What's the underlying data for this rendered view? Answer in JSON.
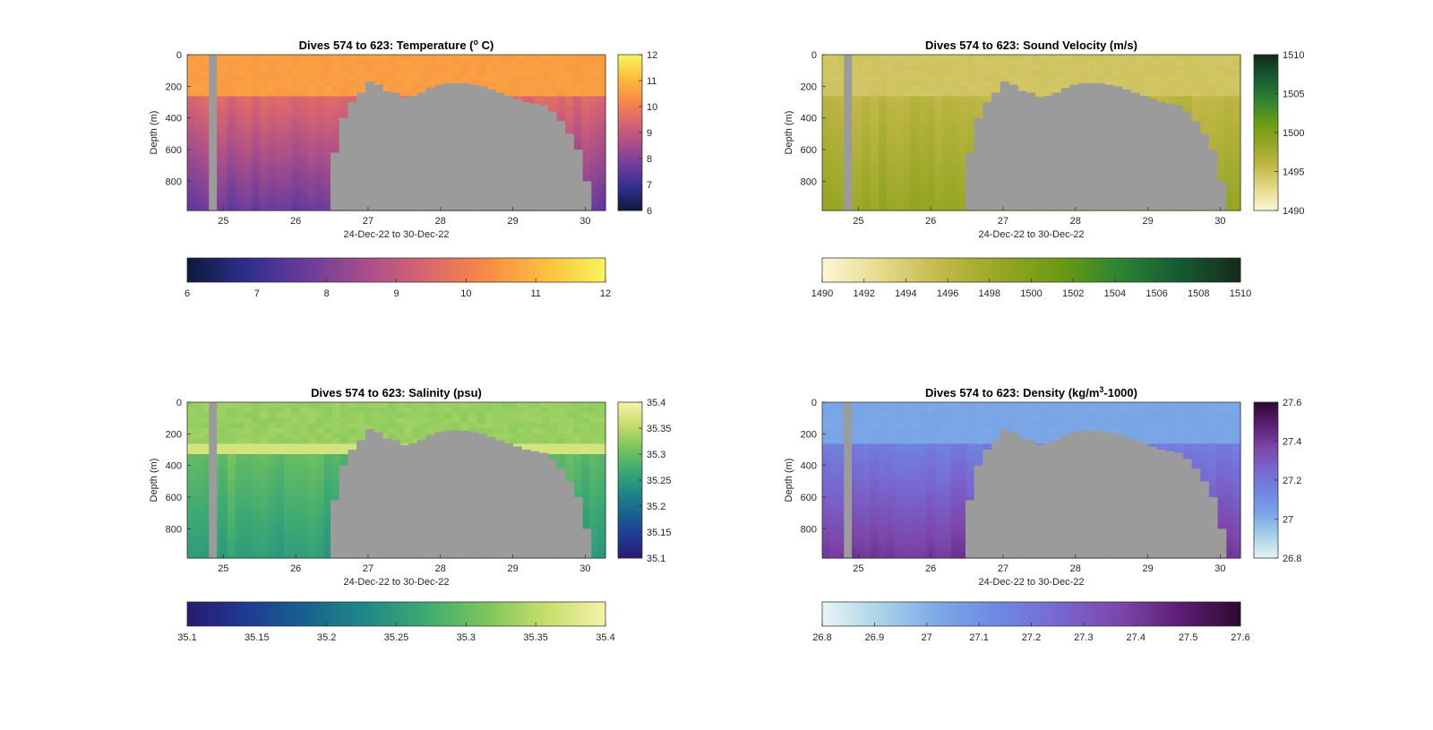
{
  "figure": {
    "date_range_label": "24-Dec-22 to 30-Dec-22"
  },
  "chart_data": [
    {
      "type": "heatmap",
      "id": "temp",
      "title_prefix": "Dives 574 to 623: Temperature (",
      "title_sup": "o",
      "title_suffix": " C)",
      "xlabel": "24-Dec-22 to 30-Dec-22",
      "ylabel": "Depth (m)",
      "xlim": [
        24.5,
        30.28
      ],
      "ylim": [
        0,
        985
      ],
      "xticks": [
        25,
        26,
        27,
        28,
        29,
        30
      ],
      "yticks": [
        0,
        200,
        400,
        600,
        800
      ],
      "clim": [
        6,
        12
      ],
      "colorbar_ticks": [
        6,
        7,
        8,
        9,
        10,
        11,
        12
      ],
      "horizontal_colorbar_ticks": [
        6,
        7,
        8,
        9,
        10,
        11,
        12
      ],
      "colormap": [
        "#0b1a3a",
        "#2e2f8c",
        "#6b3c9c",
        "#a84e8a",
        "#d9666f",
        "#f98a45",
        "#fbbf3e",
        "#f6f45d"
      ],
      "profile": {
        "surface": 10.6,
        "mixed_depth": 230,
        "deep": 7.6,
        "noise": 0.35
      },
      "gap_day": 24.8,
      "gap_width_days": 0.11,
      "nodata_color": "#9b9b9b"
    },
    {
      "type": "heatmap",
      "id": "sound",
      "title_prefix": "Dives 574 to 623: Sound Velocity (m/s)",
      "title_sup": "",
      "title_suffix": "",
      "xlabel": "24-Dec-22 to 30-Dec-22",
      "ylabel": "Depth (m)",
      "xlim": [
        24.5,
        30.28
      ],
      "ylim": [
        0,
        985
      ],
      "xticks": [
        25,
        26,
        27,
        28,
        29,
        30
      ],
      "yticks": [
        0,
        200,
        400,
        600,
        800
      ],
      "clim": [
        1490,
        1510
      ],
      "colorbar_ticks": [
        1490,
        1495,
        1500,
        1505,
        1510
      ],
      "horizontal_colorbar_ticks": [
        1490,
        1492,
        1494,
        1496,
        1498,
        1500,
        1502,
        1504,
        1506,
        1508,
        1510
      ],
      "colormap": [
        "#fdf7d6",
        "#e5d98c",
        "#c2b848",
        "#96a623",
        "#6a9a14",
        "#2c8232",
        "#165a32",
        "#142a1c"
      ],
      "profile": {
        "surface": 1494.6,
        "mixed_depth": 230,
        "deep": 1498.6,
        "noise": 1.1
      },
      "gap_day": 24.8,
      "gap_width_days": 0.11,
      "nodata_color": "#9b9b9b"
    },
    {
      "type": "heatmap",
      "id": "sal",
      "title_prefix": "Dives 574 to 623: Salinity (psu)",
      "title_sup": "",
      "title_suffix": "",
      "xlabel": "24-Dec-22 to 30-Dec-22",
      "ylabel": "Depth (m)",
      "xlim": [
        24.5,
        30.28
      ],
      "ylim": [
        0,
        985
      ],
      "xticks": [
        25,
        26,
        27,
        28,
        29,
        30
      ],
      "yticks": [
        0,
        200,
        400,
        600,
        800
      ],
      "clim": [
        35.1,
        35.4
      ],
      "colorbar_ticks": [
        35.1,
        35.15,
        35.2,
        35.25,
        35.3,
        35.35,
        35.4
      ],
      "horizontal_colorbar_ticks": [
        35.1,
        35.15,
        35.2,
        35.25,
        35.3,
        35.35,
        35.4
      ],
      "colormap": [
        "#2a1a6e",
        "#1f3b94",
        "#19628e",
        "#1f8a86",
        "#3eaa72",
        "#7cc55c",
        "#c5de6a",
        "#f6f2a8"
      ],
      "profile": {
        "surface": 35.33,
        "mixed_depth": 250,
        "deep": 35.25,
        "noise": 0.03,
        "band": 35.37
      },
      "gap_day": 24.8,
      "gap_width_days": 0.11,
      "nodata_color": "#9b9b9b"
    },
    {
      "type": "heatmap",
      "id": "dens",
      "title_prefix": "Dives 574 to 623: Density (kg/m",
      "title_sup": "3",
      "title_suffix": "-1000)",
      "xlabel": "24-Dec-22 to 30-Dec-22",
      "ylabel": "Depth (m)",
      "xlim": [
        24.5,
        30.28
      ],
      "ylim": [
        0,
        985
      ],
      "xticks": [
        25,
        26,
        27,
        28,
        29,
        30
      ],
      "yticks": [
        0,
        200,
        400,
        600,
        800
      ],
      "clim": [
        26.8,
        27.6
      ],
      "colorbar_ticks": [
        26.8,
        27,
        27.2,
        27.4,
        27.6
      ],
      "horizontal_colorbar_ticks": [
        26.8,
        26.9,
        27,
        27.1,
        27.2,
        27.3,
        27.4,
        27.5,
        27.6
      ],
      "colormap": [
        "#e8f4f4",
        "#a9d2e8",
        "#7aa6e6",
        "#6f86e2",
        "#7866cf",
        "#7c45a8",
        "#5c1e74",
        "#2e0a30"
      ],
      "profile": {
        "surface": 27.03,
        "mixed_depth": 230,
        "deep": 27.42,
        "noise": 0.04
      },
      "gap_day": 24.8,
      "gap_width_days": 0.11,
      "nodata_color": "#9b9b9b"
    }
  ],
  "nodata_floor": {
    "days": [
      26.48,
      26.6,
      26.72,
      26.84,
      26.96,
      27.08,
      27.2,
      27.32,
      27.44,
      27.56,
      27.68,
      27.8,
      27.92,
      28.04,
      28.16,
      28.28,
      28.4,
      28.52,
      28.64,
      28.76,
      28.88,
      29.0,
      29.12,
      29.24,
      29.36,
      29.48,
      29.6,
      29.72,
      29.84,
      29.96,
      30.08
    ],
    "depths": [
      620,
      400,
      300,
      240,
      170,
      190,
      230,
      240,
      270,
      260,
      240,
      210,
      190,
      180,
      180,
      180,
      190,
      200,
      220,
      240,
      260,
      280,
      300,
      310,
      320,
      360,
      420,
      500,
      600,
      800,
      985
    ]
  }
}
